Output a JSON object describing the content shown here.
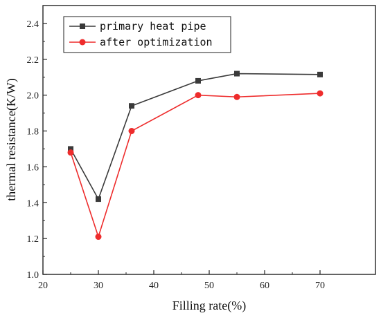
{
  "chart_data": {
    "type": "line",
    "title": "",
    "xlabel": "Filling rate(%)",
    "ylabel": "thermal resistance(K/W)",
    "xlim": [
      20,
      80
    ],
    "ylim": [
      1.0,
      2.5
    ],
    "xticks": [
      20,
      30,
      40,
      50,
      60,
      70
    ],
    "yticks": [
      1.0,
      1.2,
      1.4,
      1.6,
      1.8,
      2.0,
      2.2,
      2.4
    ],
    "grid": false,
    "legend_position": "top-left",
    "series": [
      {
        "name": "primary heat pipe",
        "color": "#3a3a3a",
        "marker": "square",
        "x": [
          25,
          30,
          36,
          48,
          55,
          70
        ],
        "values": [
          1.7,
          1.42,
          1.94,
          2.08,
          2.12,
          2.115
        ]
      },
      {
        "name": "after optimization",
        "color": "#ee2c2c",
        "marker": "circle",
        "x": [
          25,
          30,
          36,
          48,
          55,
          70
        ],
        "values": [
          1.68,
          1.21,
          1.8,
          2.0,
          1.99,
          2.01
        ]
      }
    ]
  }
}
